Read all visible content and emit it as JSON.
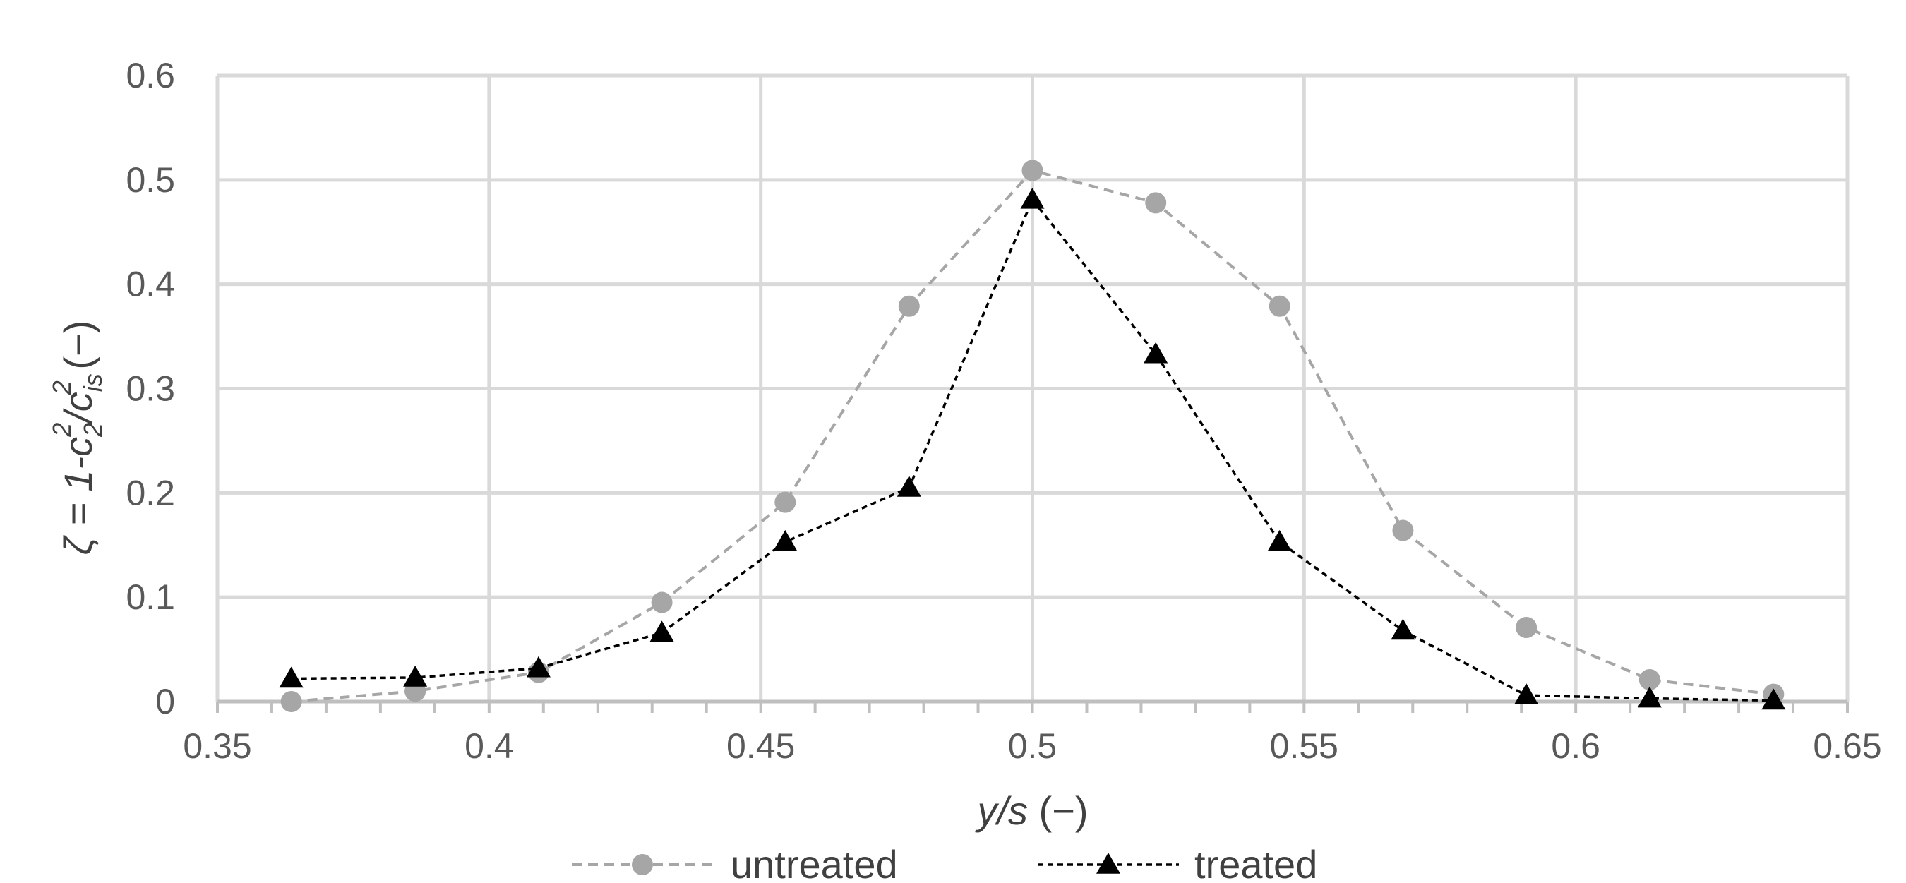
{
  "chart_data": {
    "type": "line",
    "title": "",
    "xlabel": {
      "var": "y/s",
      "unit": " (−)"
    },
    "ylabel": {
      "prefix": "ζ = 1-c",
      "sub1": "2",
      "sup1": "2",
      "mid": "/c",
      "sub2": "is",
      "sup2": "2",
      "unit": " (−)"
    },
    "xlim": [
      0.35,
      0.65
    ],
    "ylim": [
      0,
      0.6
    ],
    "x_ticks": [
      0.35,
      0.4,
      0.45,
      0.5,
      0.55,
      0.6,
      0.65
    ],
    "x_tick_labels": [
      "0.35",
      "0.4",
      "0.45",
      "0.5",
      "0.55",
      "0.6",
      "0.65"
    ],
    "y_ticks": [
      0,
      0.1,
      0.2,
      0.3,
      0.4,
      0.5,
      0.6
    ],
    "y_tick_labels": [
      "0",
      "0.1",
      "0.2",
      "0.3",
      "0.4",
      "0.5",
      "0.6"
    ],
    "x_minor_step": 0.01,
    "grid": true,
    "legend_position": "bottom",
    "series": [
      {
        "name": "untreated",
        "marker": "circle",
        "color": "#a6a6a6",
        "x": [
          0.3636,
          0.3864,
          0.4091,
          0.4318,
          0.4545,
          0.4773,
          0.5,
          0.5227,
          0.5455,
          0.5682,
          0.5909,
          0.6136,
          0.6364
        ],
        "y": [
          0.0,
          0.01,
          0.028,
          0.095,
          0.191,
          0.379,
          0.509,
          0.478,
          0.379,
          0.164,
          0.071,
          0.021,
          0.007
        ]
      },
      {
        "name": "treated",
        "marker": "triangle",
        "color": "#000000",
        "x": [
          0.3636,
          0.3864,
          0.4091,
          0.4318,
          0.4545,
          0.4773,
          0.5,
          0.5227,
          0.5455,
          0.5682,
          0.5909,
          0.6136,
          0.6364
        ],
        "y": [
          0.022,
          0.023,
          0.032,
          0.066,
          0.153,
          0.205,
          0.481,
          0.333,
          0.153,
          0.068,
          0.006,
          0.003,
          0.001
        ]
      }
    ]
  }
}
